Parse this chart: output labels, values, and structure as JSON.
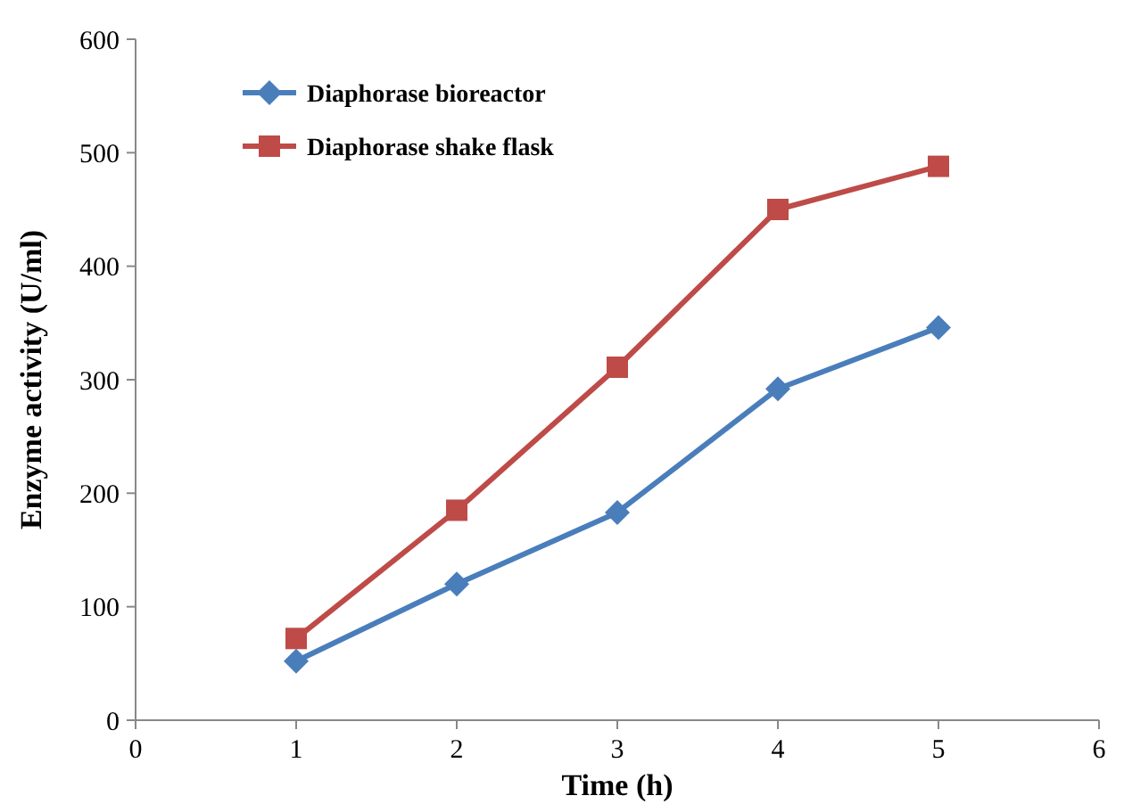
{
  "chart_data": {
    "type": "line",
    "xlabel": "Time (h)",
    "ylabel": "Enzyme activity (U/ml)",
    "x": [
      1,
      2,
      3,
      4,
      5
    ],
    "series": [
      {
        "name": "Diaphorase bioreactor",
        "color": "#4a7ebb",
        "marker": "diamond",
        "values": [
          52,
          120,
          183,
          292,
          346
        ]
      },
      {
        "name": "Diaphorase shake flask",
        "color": "#be4b48",
        "marker": "square",
        "values": [
          72,
          185,
          311,
          450,
          488
        ]
      }
    ],
    "xlim": [
      0,
      6
    ],
    "xticks": [
      0,
      1,
      2,
      3,
      4,
      5,
      6
    ],
    "ylim": [
      0,
      600
    ],
    "yticks": [
      0,
      100,
      200,
      300,
      400,
      500,
      600
    ],
    "grid": false,
    "legend": "top left",
    "line_style": "solid"
  }
}
